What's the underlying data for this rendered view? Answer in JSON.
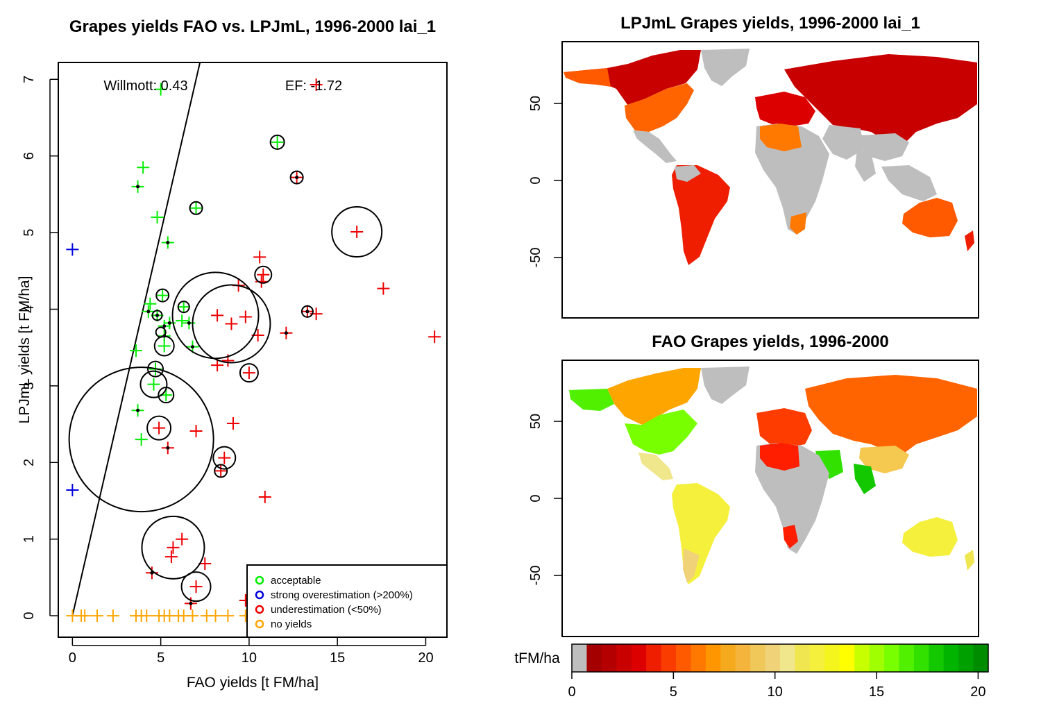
{
  "scatter": {
    "title": "Grapes yields FAO vs. LPJmL, 1996-2000 lai_1",
    "xlabel": "FAO yields [t FM/ha]",
    "ylabel": "LPJmL yields [t FM/ha]",
    "willmott": "Willmott: 0.43",
    "ef": "EF: -1.72",
    "legend": [
      {
        "label": "acceptable",
        "color": "#00ee00"
      },
      {
        "label": "strong overestimation (>200%)",
        "color": "#0000dd"
      },
      {
        "label": "underestimation (<50%)",
        "color": "#ee0000"
      },
      {
        "label": "no yields",
        "color": "#ffa500"
      }
    ]
  },
  "map_top": {
    "title": "LPJmL Grapes yields, 1996-2000 lai_1"
  },
  "map_bottom": {
    "title": "FAO Grapes yields, 1996-2000"
  },
  "colorbar": {
    "label": "tFM/ha",
    "ticks": [
      "0",
      "5",
      "10",
      "15",
      "20"
    ],
    "colors": [
      "#bebebe",
      "#a50000",
      "#b40000",
      "#c80000",
      "#dc0000",
      "#f01e00",
      "#fa3c00",
      "#ff5a00",
      "#ff7800",
      "#ff9600",
      "#f5aa1e",
      "#f5b43c",
      "#f0c85a",
      "#f0d278",
      "#f0e68c",
      "#f0e650",
      "#f5f03c",
      "#f5f51e",
      "#ffff00",
      "#c8ff00",
      "#a0ff00",
      "#78ff00",
      "#50f000",
      "#32e100",
      "#14c800",
      "#00b400",
      "#00a000",
      "#008c00"
    ]
  },
  "chart_data": [
    {
      "type": "scatter",
      "title": "Grapes yields FAO vs. LPJmL, 1996-2000 lai_1",
      "xlabel": "FAO yields [t FM/ha]",
      "ylabel": "LPJmL yields [t FM/ha]",
      "xlim": [
        -0.8,
        21.2
      ],
      "ylim": [
        -0.28,
        7.22
      ],
      "xticks": [
        0,
        5,
        10,
        15,
        20
      ],
      "yticks": [
        0,
        1,
        2,
        3,
        4,
        5,
        6,
        7
      ],
      "line": [
        [
          0,
          0
        ],
        [
          7.22,
          7.22
        ]
      ],
      "series": [
        {
          "name": "acceptable",
          "points": [
            [
              5.0,
              6.87
            ],
            [
              4.0,
              5.85
            ],
            [
              3.7,
              5.6
            ],
            [
              4.8,
              5.2
            ],
            [
              5.4,
              4.87
            ],
            [
              4.4,
              4.07
            ],
            [
              4.3,
              3.97
            ],
            [
              4.8,
              3.92
            ],
            [
              5.5,
              3.82
            ],
            [
              5.2,
              3.78
            ],
            [
              6.2,
              3.85
            ],
            [
              6.6,
              3.82
            ],
            [
              5.2,
              3.65
            ],
            [
              3.6,
              3.46
            ],
            [
              5.2,
              3.52
            ],
            [
              6.8,
              3.51
            ],
            [
              4.6,
              3.02
            ],
            [
              3.7,
              2.68
            ],
            [
              3.9,
              2.3
            ],
            [
              11.6,
              6.18
            ],
            [
              7.0,
              5.32
            ],
            [
              5.1,
              4.18
            ],
            [
              6.3,
              4.03
            ],
            [
              4.7,
              3.22
            ],
            [
              5.3,
              2.88
            ]
          ]
        },
        {
          "name": "strong overestimation (>200%)",
          "points": [
            [
              0.0,
              4.78
            ],
            [
              0.0,
              1.64
            ]
          ]
        },
        {
          "name": "underestimation (<50%)",
          "points": [
            [
              16.1,
              5.01
            ],
            [
              13.8,
              6.93
            ],
            [
              12.7,
              5.72
            ],
            [
              10.6,
              4.68
            ],
            [
              10.8,
              4.45
            ],
            [
              10.7,
              4.36
            ],
            [
              9.4,
              4.31
            ],
            [
              17.6,
              4.27
            ],
            [
              13.3,
              3.97
            ],
            [
              13.8,
              3.94
            ],
            [
              8.2,
              3.92
            ],
            [
              9.8,
              3.9
            ],
            [
              9.0,
              3.81
            ],
            [
              10.5,
              3.66
            ],
            [
              20.5,
              3.64
            ],
            [
              12.1,
              3.69
            ],
            [
              8.8,
              3.33
            ],
            [
              8.2,
              3.27
            ],
            [
              10.0,
              3.17
            ],
            [
              9.1,
              2.51
            ],
            [
              4.9,
              2.45
            ],
            [
              7.0,
              2.41
            ],
            [
              5.4,
              2.19
            ],
            [
              8.6,
              2.06
            ],
            [
              8.4,
              1.89
            ],
            [
              10.9,
              1.55
            ],
            [
              6.2,
              1.0
            ],
            [
              5.7,
              0.89
            ],
            [
              5.6,
              0.77
            ],
            [
              7.5,
              0.68
            ],
            [
              4.5,
              0.56
            ],
            [
              7.0,
              0.38
            ],
            [
              6.7,
              0.16
            ],
            [
              9.8,
              0.2
            ]
          ]
        },
        {
          "name": "no yields",
          "points": [
            [
              0.0,
              0.0
            ],
            [
              0.5,
              0.0
            ],
            [
              0.7,
              0.0
            ],
            [
              1.4,
              0.0
            ],
            [
              2.3,
              0.0
            ],
            [
              3.6,
              0.0
            ],
            [
              3.9,
              0.0
            ],
            [
              4.2,
              0.0
            ],
            [
              4.9,
              0.0
            ],
            [
              5.2,
              0.0
            ],
            [
              5.5,
              0.0
            ],
            [
              6.0,
              0.0
            ],
            [
              6.3,
              0.0
            ],
            [
              6.8,
              0.0
            ],
            [
              7.6,
              0.0
            ],
            [
              8.1,
              0.0
            ],
            [
              8.8,
              0.0
            ],
            [
              9.8,
              0.0
            ]
          ]
        }
      ]
    },
    {
      "type": "heatmap",
      "title": "LPJmL Grapes yields, 1996-2000 lai_1",
      "ylim": [
        -90,
        90
      ],
      "yticks": [
        50,
        0,
        -50
      ]
    },
    {
      "type": "heatmap",
      "title": "FAO Grapes yields, 1996-2000",
      "ylim": [
        -90,
        90
      ],
      "yticks": [
        50,
        0,
        -50
      ],
      "colorbar_label": "tFM/ha",
      "colorbar_range": [
        0,
        20.5
      ]
    }
  ]
}
